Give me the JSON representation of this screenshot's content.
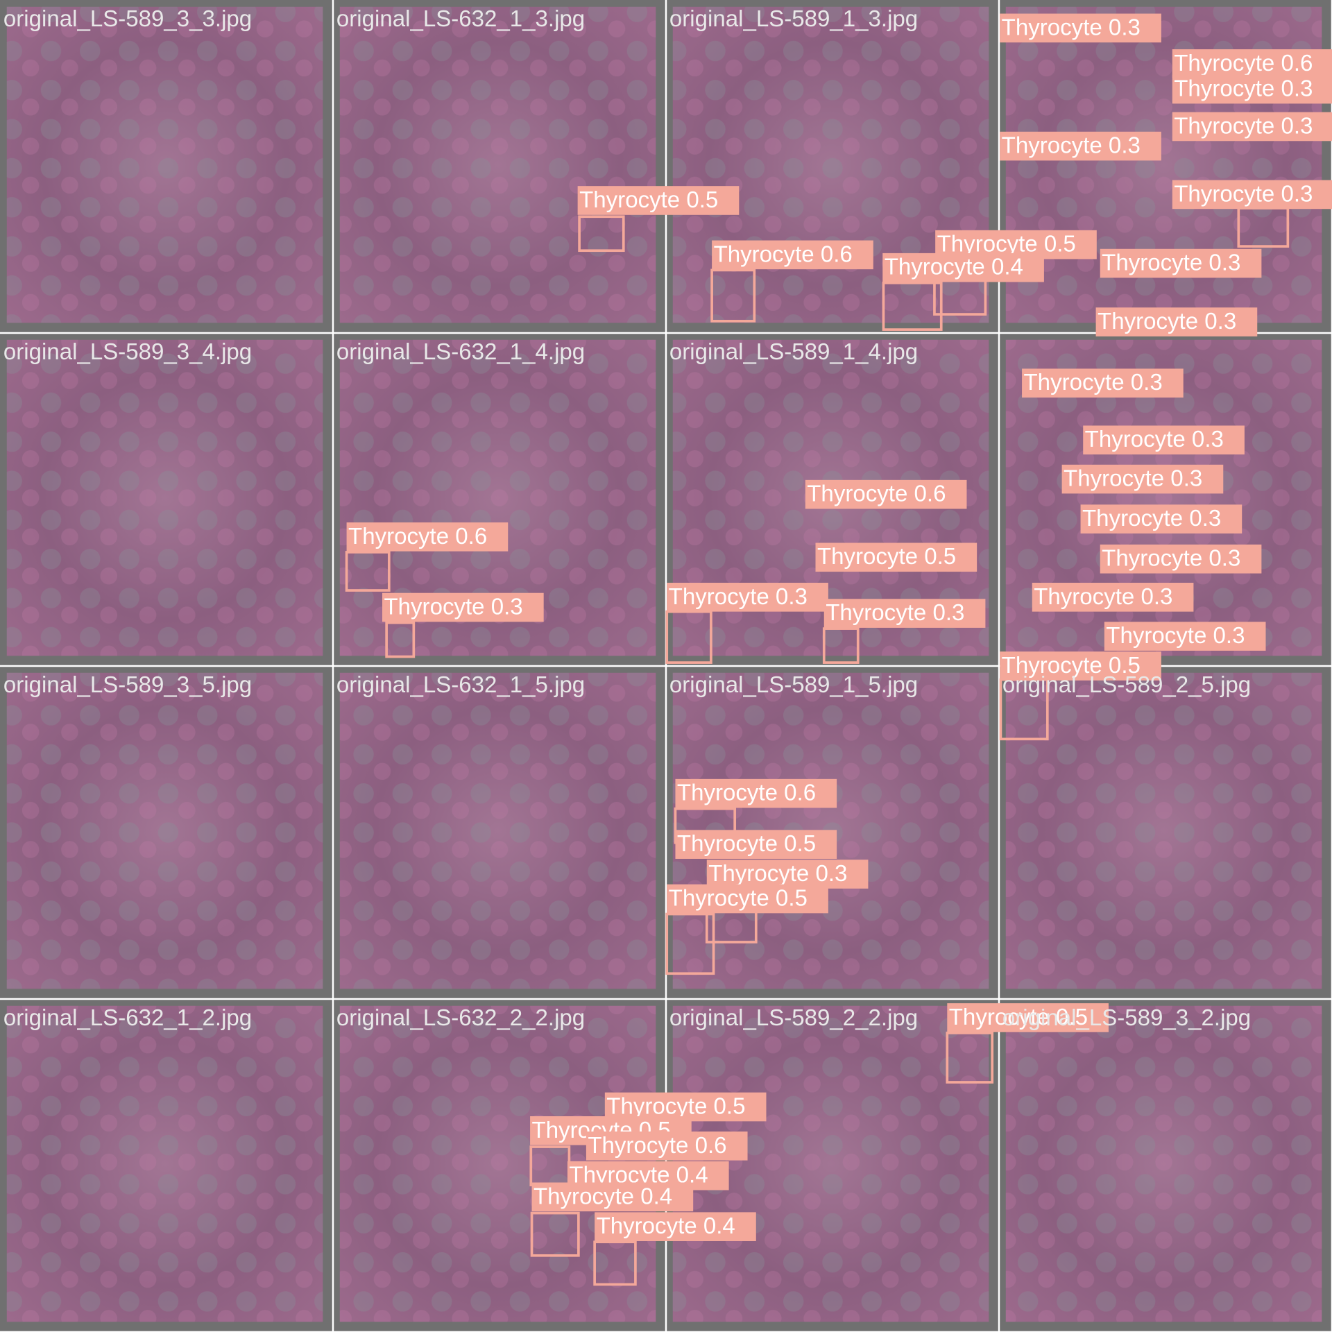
{
  "tiles": [
    {
      "filename": "original_LS-589_3_3.jpg"
    },
    {
      "filename": "original_LS-632_1_3.jpg"
    },
    {
      "filename": "original_LS-589_1_3.jpg"
    },
    {
      "filename": "original_LS-589_3_4.jpg"
    },
    {
      "filename": "original_LS-632_1_4.jpg"
    },
    {
      "filename": "original_LS-589_1_4.jpg"
    },
    {
      "filename": "original_LS-589_3_5.jpg"
    },
    {
      "filename": "original_LS-632_1_5.jpg"
    },
    {
      "filename": "original_LS-589_1_5.jpg"
    },
    {
      "filename": "original_LS-589_2_5.jpg"
    },
    {
      "filename": "original_LS-632_1_2.jpg"
    },
    {
      "filename": "original_LS-632_2_2.jpg"
    },
    {
      "filename": "original_LS-589_2_2.jpg"
    },
    {
      "filename": "original_LS-589_3_2.jpg"
    }
  ],
  "detections": [
    {
      "label": "Thyrocyte 0.5"
    },
    {
      "label": "Thyrocyte 0.6"
    },
    {
      "label": "Thyrocyte 0.5"
    },
    {
      "label": "Thyrocyte 0.4"
    },
    {
      "label": "Thyrocyte 0.3"
    },
    {
      "label": "Thyrocyte 0.6"
    },
    {
      "label": "Thyrocyte 0.3"
    },
    {
      "label": "Thyrocyte 0.3"
    },
    {
      "label": "Thyrocyte 0.3"
    },
    {
      "label": "Thyrocyte 0.3"
    },
    {
      "label": "Thyrocyte 0.3"
    },
    {
      "label": "Thyrocyte 0.3"
    },
    {
      "label": "Thyrocyte 0.3"
    },
    {
      "label": "Thyrocyte 0.3"
    },
    {
      "label": "Thyrocyte 0.3"
    },
    {
      "label": "Thyrocyte 0.3"
    },
    {
      "label": "Thyrocyte 0.3"
    },
    {
      "label": "Thyrocyte 0.3"
    },
    {
      "label": "Thyrocyte 0.3"
    },
    {
      "label": "Thyrocyte 0.5"
    },
    {
      "label": "Thyrocyte 0.6"
    },
    {
      "label": "Thyrocyte 0.3"
    },
    {
      "label": "Thyrocyte 0.6"
    },
    {
      "label": "Thyrocyte 0.5"
    },
    {
      "label": "Thyrocyte 0.3"
    },
    {
      "label": "Thyrocyte 0.3"
    },
    {
      "label": "Thyrocyte 0.6"
    },
    {
      "label": "Thyrocyte 0.5"
    },
    {
      "label": "Thyrocyte 0.3"
    },
    {
      "label": "Thyrocyte 0.5"
    },
    {
      "label": "Thyrocyte 0.5"
    },
    {
      "label": "Thyrocyte 0.5"
    },
    {
      "label": "Thyrocyte 0.5"
    },
    {
      "label": "Thyrocyte 0.6"
    },
    {
      "label": "Thyrocyte 0.4"
    },
    {
      "label": "Thyrocyte 0.4"
    },
    {
      "label": "Thyrocyte 0.4"
    }
  ]
}
